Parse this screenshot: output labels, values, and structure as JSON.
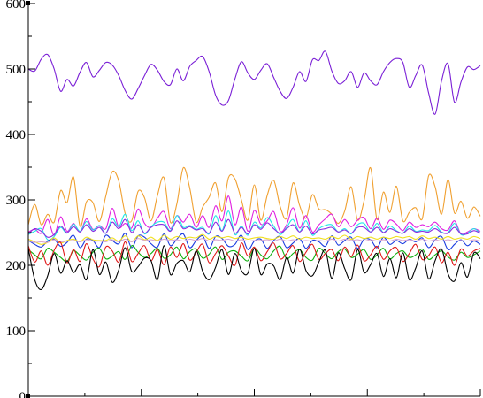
{
  "chart_data": {
    "type": "line",
    "title": "",
    "xlabel": "",
    "ylabel": "",
    "ylim": [
      0,
      600
    ],
    "xlim": [
      0,
      400
    ],
    "y_ticks": [
      {
        "value": 0,
        "label": "0"
      },
      {
        "value": 100,
        "label": "100"
      },
      {
        "value": 200,
        "label": "200"
      },
      {
        "value": 300,
        "label": "300"
      },
      {
        "value": 400,
        "label": "400"
      },
      {
        "value": 500,
        "label": "500"
      },
      {
        "value": 600,
        "label": "600"
      }
    ],
    "x_major_ticks": [
      0,
      100,
      200,
      300,
      400
    ],
    "grid": false,
    "legend": "none",
    "series": [
      {
        "color": "#7a1fd6",
        "values": [
          500,
          497,
          515,
          522,
          500,
          466,
          484,
          474,
          495,
          510,
          488,
          498,
          510,
          506,
          490,
          467,
          454,
          470,
          490,
          507,
          498,
          481,
          476,
          500,
          482,
          504,
          513,
          519,
          496,
          460,
          445,
          452,
          485,
          511,
          494,
          484,
          498,
          508,
          487,
          466,
          455,
          472,
          496,
          481,
          514,
          513,
          527,
          497,
          478,
          482,
          496,
          472,
          494,
          482,
          476,
          496,
          510,
          516,
          510,
          472,
          490,
          506,
          463,
          431,
          482,
          508,
          449,
          480,
          503,
          499,
          505
        ]
      },
      {
        "color": "#f0a030",
        "values": [
          262,
          293,
          262,
          278,
          266,
          314,
          296,
          335,
          260,
          297,
          296,
          267,
          306,
          343,
          329,
          279,
          268,
          313,
          303,
          268,
          307,
          334,
          266,
          294,
          349,
          318,
          266,
          289,
          304,
          326,
          282,
          334,
          332,
          300,
          269,
          323,
          269,
          307,
          330,
          290,
          272,
          326,
          292,
          272,
          308,
          286,
          285,
          278,
          264,
          283,
          320,
          269,
          299,
          349,
          270,
          312,
          281,
          321,
          268,
          281,
          288,
          271,
          337,
          320,
          278,
          331,
          280,
          298,
          272,
          289,
          275
        ]
      },
      {
        "color": "#e020e0",
        "values": [
          251,
          255,
          249,
          270,
          246,
          274,
          252,
          264,
          251,
          271,
          255,
          261,
          256,
          287,
          258,
          264,
          257,
          286,
          264,
          258,
          272,
          282,
          256,
          276,
          266,
          278,
          258,
          276,
          258,
          291,
          268,
          306,
          262,
          289,
          252,
          284,
          263,
          268,
          282,
          252,
          262,
          288,
          257,
          276,
          251,
          262,
          271,
          278,
          259,
          270,
          259,
          269,
          273,
          256,
          272,
          255,
          269,
          263,
          253,
          266,
          258,
          262,
          259,
          266,
          256,
          254,
          268,
          248,
          251,
          256,
          252
        ]
      },
      {
        "color": "#20e8e8",
        "values": [
          247,
          252,
          256,
          239,
          244,
          258,
          249,
          263,
          252,
          267,
          254,
          261,
          249,
          271,
          259,
          278,
          253,
          268,
          248,
          259,
          266,
          266,
          253,
          276,
          258,
          261,
          255,
          258,
          248,
          276,
          253,
          283,
          247,
          260,
          246,
          266,
          257,
          273,
          260,
          247,
          258,
          270,
          251,
          268,
          246,
          256,
          261,
          262,
          251,
          256,
          248,
          262,
          264,
          251,
          264,
          250,
          260,
          253,
          249,
          260,
          252,
          254,
          253,
          261,
          251,
          250,
          264,
          247,
          249,
          256,
          249
        ]
      },
      {
        "color": "#8a2be2",
        "values": [
          248,
          256,
          252,
          243,
          247,
          260,
          250,
          259,
          251,
          262,
          252,
          258,
          249,
          266,
          256,
          270,
          250,
          262,
          249,
          258,
          262,
          262,
          252,
          268,
          256,
          259,
          254,
          256,
          249,
          266,
          252,
          270,
          249,
          258,
          248,
          262,
          255,
          265,
          256,
          249,
          256,
          262,
          251,
          260,
          248,
          254,
          256,
          258,
          251,
          254,
          249,
          258,
          258,
          251,
          258,
          250,
          256,
          252,
          249,
          256,
          251,
          252,
          251,
          256,
          250,
          249,
          258,
          248,
          248,
          253,
          249
        ]
      },
      {
        "color": "#1a3ce0",
        "values": [
          238,
          232,
          228,
          237,
          240,
          229,
          235,
          246,
          227,
          240,
          238,
          227,
          246,
          238,
          233,
          249,
          227,
          245,
          243,
          233,
          228,
          248,
          230,
          240,
          248,
          227,
          238,
          245,
          226,
          244,
          241,
          229,
          232,
          246,
          224,
          237,
          240,
          226,
          238,
          244,
          227,
          234,
          241,
          226,
          238,
          236,
          229,
          245,
          231,
          238,
          243,
          226,
          240,
          239,
          227,
          243,
          232,
          238,
          233,
          240,
          236,
          242,
          227,
          239,
          244,
          224,
          232,
          239,
          230,
          237,
          232
        ]
      },
      {
        "color": "#f0e020",
        "values": [
          240,
          236,
          232,
          235,
          242,
          234,
          238,
          240,
          236,
          243,
          239,
          238,
          238,
          242,
          237,
          245,
          236,
          245,
          239,
          243,
          238,
          246,
          240,
          244,
          241,
          243,
          242,
          247,
          240,
          244,
          242,
          244,
          241,
          243,
          240,
          242,
          243,
          241,
          240,
          244,
          241,
          245,
          240,
          243,
          241,
          242,
          240,
          244,
          241,
          246,
          240,
          244,
          241,
          243,
          240,
          243,
          241,
          244,
          242,
          244,
          240,
          245,
          241,
          243,
          240,
          244,
          240,
          242,
          240,
          244,
          241
        ]
      },
      {
        "color": "#d8a8d0",
        "values": [
          238,
          235,
          236,
          235,
          239,
          236,
          237,
          238,
          236,
          239,
          237,
          237,
          236,
          239,
          236,
          240,
          236,
          241,
          238,
          239,
          237,
          240,
          238,
          239,
          237,
          240,
          238,
          241,
          237,
          239,
          238,
          240,
          237,
          239,
          237,
          238,
          238,
          239,
          237,
          240,
          237,
          239,
          237,
          238,
          237,
          238,
          237,
          240,
          237,
          240,
          238,
          239,
          237,
          239,
          237,
          239,
          237,
          240,
          238,
          239,
          237,
          240,
          237,
          239,
          237,
          239,
          237,
          238,
          237,
          239,
          237
        ]
      },
      {
        "color": "#10b010",
        "values": [
          224,
          216,
          210,
          226,
          220,
          212,
          206,
          222,
          215,
          208,
          220,
          226,
          210,
          214,
          221,
          209,
          230,
          220,
          212,
          218,
          226,
          211,
          216,
          228,
          210,
          221,
          225,
          211,
          217,
          228,
          209,
          220,
          222,
          214,
          207,
          226,
          216,
          210,
          222,
          229,
          210,
          218,
          224,
          212,
          208,
          226,
          218,
          210,
          221,
          225,
          212,
          217,
          224,
          209,
          216,
          226,
          210,
          218,
          222,
          212,
          216,
          225,
          209,
          216,
          222,
          213,
          208,
          220,
          212,
          216,
          222
        ]
      },
      {
        "color": "#e01818",
        "values": [
          230,
          205,
          222,
          200,
          223,
          235,
          204,
          224,
          206,
          233,
          210,
          198,
          228,
          222,
          205,
          236,
          206,
          218,
          230,
          207,
          224,
          201,
          228,
          212,
          233,
          208,
          220,
          232,
          204,
          218,
          230,
          214,
          200,
          234,
          214,
          228,
          207,
          221,
          234,
          210,
          218,
          230,
          206,
          220,
          232,
          209,
          218,
          224,
          207,
          228,
          213,
          231,
          207,
          216,
          229,
          209,
          222,
          227,
          206,
          218,
          232,
          209,
          215,
          228,
          204,
          220,
          200,
          225,
          214,
          222,
          226
        ]
      },
      {
        "color": "#000000",
        "values": [
          226,
          178,
          163,
          184,
          218,
          188,
          207,
          189,
          201,
          178,
          224,
          186,
          205,
          174,
          193,
          227,
          191,
          198,
          211,
          207,
          178,
          230,
          186,
          203,
          207,
          190,
          222,
          191,
          178,
          197,
          224,
          186,
          218,
          192,
          188,
          226,
          186,
          202,
          199,
          178,
          212,
          188,
          225,
          192,
          184,
          205,
          223,
          180,
          219,
          195,
          178,
          224,
          189,
          201,
          218,
          183,
          210,
          181,
          219,
          178,
          196,
          222,
          179,
          207,
          225,
          187,
          176,
          204,
          182,
          219,
          210
        ]
      }
    ]
  }
}
